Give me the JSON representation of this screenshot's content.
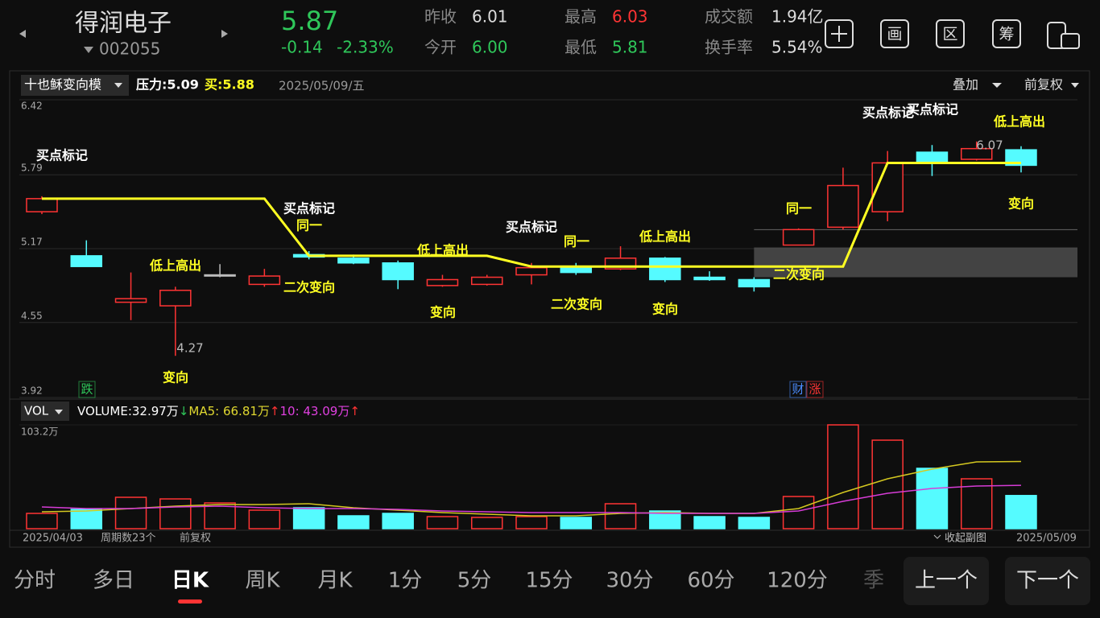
{
  "header": {
    "name": "得润电子",
    "code": "002055",
    "price": "5.87",
    "change": "-0.14",
    "change_pct": "-2.33%",
    "prev_close_label": "昨收",
    "prev_close": "6.01",
    "open_label": "今开",
    "open": "6.00",
    "high_label": "最高",
    "high": "6.03",
    "low_label": "最低",
    "low": "5.81",
    "amount_label": "成交额",
    "amount": "1.94亿",
    "turnover_label": "换手率",
    "turnover": "5.54%",
    "icons": [
      "画",
      "区",
      "筹"
    ]
  },
  "indicator_bar": {
    "indicator": "十也稣变向模",
    "pressure": "压力:5.09",
    "buy": "买:5.88",
    "date": "2025/05/09/五",
    "overlay": "叠加",
    "adjust": "前复权"
  },
  "chart_data": [
    {
      "type": "candlestick",
      "open": [
        5.48,
        5.11,
        4.72,
        4.69,
        4.95,
        4.87,
        5.12,
        5.09,
        5.05,
        4.86,
        4.87,
        4.95,
        5.02,
        5.0,
        5.09,
        4.93,
        4.91,
        5.2,
        5.35,
        5.48,
        5.98,
        5.92,
        6.0
      ],
      "high": [
        5.61,
        5.24,
        4.97,
        4.85,
        5.04,
        5.0,
        5.15,
        5.12,
        5.07,
        4.95,
        4.95,
        5.05,
        5.05,
        5.19,
        5.1,
        4.98,
        4.93,
        5.34,
        5.85,
        5.99,
        6.04,
        6.07,
        6.03
      ],
      "low": [
        5.46,
        5.02,
        4.57,
        4.27,
        4.93,
        4.85,
        5.08,
        5.04,
        4.83,
        4.85,
        4.86,
        4.87,
        4.95,
        4.99,
        4.89,
        4.9,
        4.81,
        5.2,
        5.33,
        5.4,
        5.78,
        5.91,
        5.81
      ],
      "close": [
        5.59,
        5.02,
        4.75,
        4.82,
        4.95,
        4.94,
        5.1,
        5.05,
        4.91,
        4.91,
        4.93,
        5.01,
        4.97,
        5.09,
        4.91,
        4.91,
        4.85,
        5.33,
        5.7,
        5.89,
        5.89,
        6.01,
        5.87
      ],
      "up_color": "#ff3434",
      "down_color": "#55fbff",
      "flat_color": "#bbbbbb",
      "ylim": [
        3.92,
        6.42
      ],
      "yticks": [
        6.42,
        5.79,
        5.17,
        4.55,
        3.92
      ],
      "grid": true,
      "lines": [
        {
          "color": "#ffff22",
          "values": [
            5.59,
            5.59,
            5.59,
            5.59,
            5.59,
            5.59,
            5.11,
            5.11,
            5.11,
            5.11,
            5.11,
            5.02,
            5.02,
            5.02,
            5.02,
            5.02,
            5.02,
            5.02,
            5.02,
            5.89,
            5.89,
            5.89,
            5.89
          ]
        }
      ],
      "zone": [
        4.93,
        5.18
      ],
      "zone_line": 5.33,
      "annotations": [
        {
          "text": "买点标记",
          "color": "#ffffff"
        },
        {
          "text": "低上高出",
          "color": "#ffff22"
        },
        {
          "text": "变向",
          "color": "#ffff22"
        },
        {
          "text": "买点标记",
          "color": "#ffffff"
        },
        {
          "text": "同一",
          "color": "#ffff22"
        },
        {
          "text": "二次变向",
          "color": "#ffff22"
        },
        {
          "text": "低上高出",
          "color": "#ffff22"
        },
        {
          "text": "变向",
          "color": "#ffff22"
        },
        {
          "text": "买点标记",
          "color": "#ffffff"
        },
        {
          "text": "同一",
          "color": "#ffff22"
        },
        {
          "text": "二次变向",
          "color": "#ffff22"
        },
        {
          "text": "低上高出",
          "color": "#ffff22"
        },
        {
          "text": "变向",
          "color": "#ffff22"
        },
        {
          "text": "同一",
          "color": "#ffff22"
        },
        {
          "text": "二次变向",
          "color": "#ffff22"
        },
        {
          "text": "买点标记",
          "color": "#ffffff"
        },
        {
          "text": "买点标记",
          "color": "#ffffff"
        },
        {
          "text": "低上高出",
          "color": "#ffff22"
        },
        {
          "text": "变向",
          "color": "#ffff22"
        }
      ],
      "markers": [
        {
          "text": "跌",
          "color": "#2fc75a"
        },
        {
          "text": "财",
          "color": "#4a8cff"
        },
        {
          "text": "涨",
          "color": "#ff3434"
        }
      ]
    },
    {
      "type": "bar",
      "values": [
        15.2,
        19.2,
        31.2,
        29.6,
        25.6,
        18.4,
        20.8,
        12.8,
        15.2,
        12.0,
        11.2,
        12.0,
        11.2,
        24.8,
        17.6,
        12.0,
        11.2,
        32.0,
        103.2,
        88.0,
        60.0,
        49.6,
        32.97
      ],
      "ylim": [
        0,
        103.2
      ],
      "yticks": [
        {
          "value": 103.2,
          "label": "103.2万"
        }
      ],
      "lines": [
        {
          "color": "#d4c820",
          "values": [
            16.8,
            17.6,
            20.0,
            22.4,
            24.0,
            24.0,
            24.8,
            20.8,
            18.4,
            16.0,
            14.4,
            12.8,
            12.8,
            15.2,
            16.0,
            15.2,
            15.2,
            20.0,
            36.0,
            49.6,
            59.2,
            66.4,
            66.81
          ]
        },
        {
          "color": "#d63cd6",
          "values": [
            21.6,
            20.0,
            20.0,
            21.6,
            22.4,
            20.8,
            20.0,
            20.0,
            19.2,
            17.6,
            16.8,
            16.0,
            16.0,
            16.0,
            15.2,
            15.2,
            15.2,
            17.6,
            27.2,
            35.2,
            40.0,
            42.4,
            43.09
          ]
        }
      ],
      "legend": {
        "selector": "VOL",
        "volume": "VOLUME:32.97万",
        "volume_arrow": "↓",
        "ma5": "MA5: 66.81万",
        "ma5_arrow": "↑",
        "ma10": "10: 43.09万",
        "ma10_arrow": "↑"
      }
    }
  ],
  "footer": {
    "start_date": "2025/04/03",
    "periods": "周期数23个",
    "adjust": "前复权",
    "collapse": "收起副图",
    "end_date": "2025/05/09"
  },
  "tabs": [
    "分时",
    "多日",
    "日K",
    "周K",
    "月K",
    "1分",
    "5分",
    "15分",
    "30分",
    "60分",
    "120分",
    "季"
  ],
  "buttons": [
    "上一个",
    "下一个"
  ]
}
